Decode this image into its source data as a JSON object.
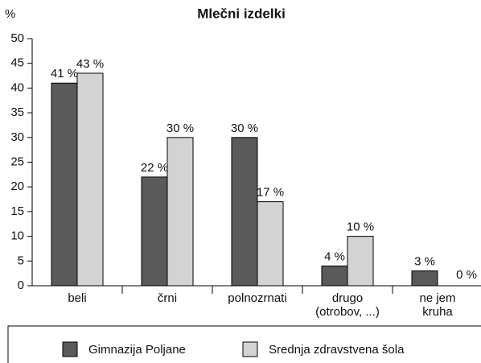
{
  "chart_data": {
    "type": "bar",
    "title": "Mlečni izdelki",
    "ylabel": "%",
    "categories": [
      "beli",
      "črni",
      "polnozrnati",
      "drugo\n(otrobov, ...)",
      "ne jem\nkruha"
    ],
    "series": [
      {
        "name": "Gimnazija Poljane",
        "color": "#5a5a5a",
        "values": [
          41,
          22,
          30,
          4,
          3
        ],
        "value_labels": [
          "41 %",
          "22 %",
          "30 %",
          "4 %",
          "3 %"
        ]
      },
      {
        "name": "Srednja zdravstvena šola",
        "color": "#d3d3d3",
        "values": [
          43,
          30,
          17,
          10,
          0
        ],
        "value_labels": [
          "43 %",
          "30 %",
          "17 %",
          "10 %",
          "0 %"
        ]
      }
    ],
    "ylim": [
      0,
      50
    ],
    "yticks": [
      0,
      5,
      10,
      15,
      20,
      25,
      30,
      35,
      40,
      45,
      50
    ],
    "grid": false,
    "legend": "bottom"
  }
}
